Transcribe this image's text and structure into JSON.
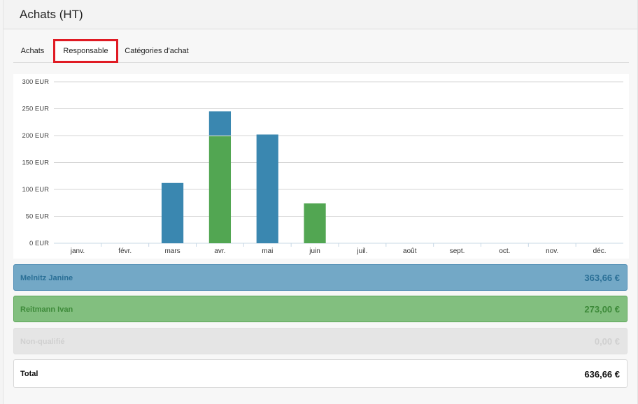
{
  "header": {
    "title": "Achats (HT)"
  },
  "tabs": [
    {
      "label": "Achats"
    },
    {
      "label": "Responsable"
    },
    {
      "label": "Catégories d'achat"
    }
  ],
  "colors": {
    "series_blue": "#3a87b0",
    "series_green": "#52a652",
    "highlight": "#e01b24"
  },
  "chart_data": {
    "type": "bar",
    "stacked": true,
    "categories": [
      "janv.",
      "févr.",
      "mars",
      "avr.",
      "mai",
      "juin",
      "juil.",
      "août",
      "sept.",
      "oct.",
      "nov.",
      "déc."
    ],
    "series": [
      {
        "values": [
          0,
          0,
          0,
          199,
          0,
          74,
          0,
          0,
          0,
          0,
          0,
          0
        ],
        "color": "#52a652"
      },
      {
        "values": [
          0,
          0,
          112,
          46,
          202,
          0,
          0,
          0,
          0,
          0,
          0,
          0
        ],
        "color": "#3a87b0"
      }
    ],
    "y_ticks": [
      "0 EUR",
      "50 EUR",
      "100 EUR",
      "150 EUR",
      "200 EUR",
      "250 EUR",
      "300 EUR"
    ],
    "ylim": [
      0,
      300
    ],
    "grid": true
  },
  "totals": [
    {
      "name": "Melnitz Janine",
      "amount": "363,66 €"
    },
    {
      "name": "Reitmann Ivan",
      "amount": "273,00 €"
    },
    {
      "name": "Non-qualifié",
      "amount": "0,00 €"
    },
    {
      "name": "Total",
      "amount": "636,66 €"
    }
  ]
}
